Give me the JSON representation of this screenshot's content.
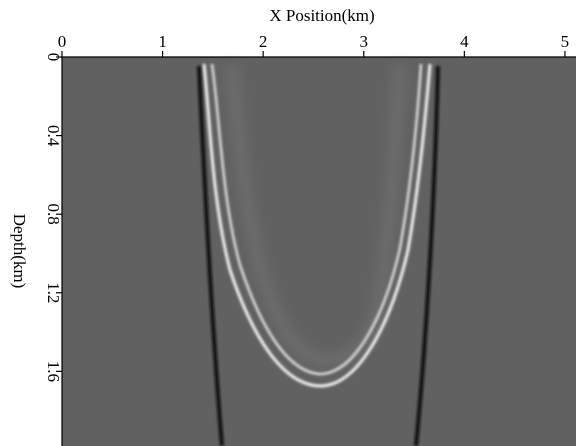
{
  "chart_data": {
    "type": "image",
    "xlabel": "X Position(km)",
    "ylabel": "Depth(km)",
    "xlim": [
      0,
      5.11
    ],
    "xticks": [
      0,
      1,
      2,
      3,
      4,
      5
    ],
    "ylim": [
      0,
      1.98
    ],
    "yticks": [
      0,
      0.4,
      0.8,
      1.2,
      1.6
    ]
  }
}
